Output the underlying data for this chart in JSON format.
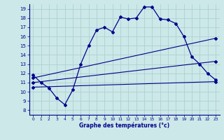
{
  "bg_color": "#cce8e8",
  "grid_color": "#aacccc",
  "line_color": "#00008b",
  "xlabel": "Graphe des températures (°c)",
  "xlabel_color": "#00008b",
  "tick_color": "#00008b",
  "xlim": [
    -0.5,
    23.5
  ],
  "ylim": [
    7.5,
    19.5
  ],
  "yticks": [
    8,
    9,
    10,
    11,
    12,
    13,
    14,
    15,
    16,
    17,
    18,
    19
  ],
  "xticks": [
    0,
    1,
    2,
    3,
    4,
    5,
    6,
    7,
    8,
    9,
    10,
    11,
    12,
    13,
    14,
    15,
    16,
    17,
    18,
    19,
    20,
    21,
    22,
    23
  ],
  "series": [
    {
      "x": [
        0,
        1,
        2,
        3,
        4,
        5,
        6,
        7,
        8,
        9,
        10,
        11,
        12,
        13,
        14,
        15,
        16,
        17,
        18,
        19,
        20,
        21,
        22,
        23
      ],
      "y": [
        11.8,
        11.0,
        10.4,
        9.3,
        8.6,
        10.2,
        13.0,
        15.0,
        16.7,
        17.0,
        16.5,
        18.1,
        17.9,
        18.0,
        19.2,
        19.2,
        17.9,
        17.8,
        17.4,
        16.0,
        13.8,
        13.0,
        12.0,
        11.3
      ]
    },
    {
      "x": [
        0,
        23
      ],
      "y": [
        10.5,
        11.1
      ]
    },
    {
      "x": [
        0,
        23
      ],
      "y": [
        11.0,
        13.3
      ]
    },
    {
      "x": [
        0,
        23
      ],
      "y": [
        11.5,
        15.8
      ]
    }
  ]
}
